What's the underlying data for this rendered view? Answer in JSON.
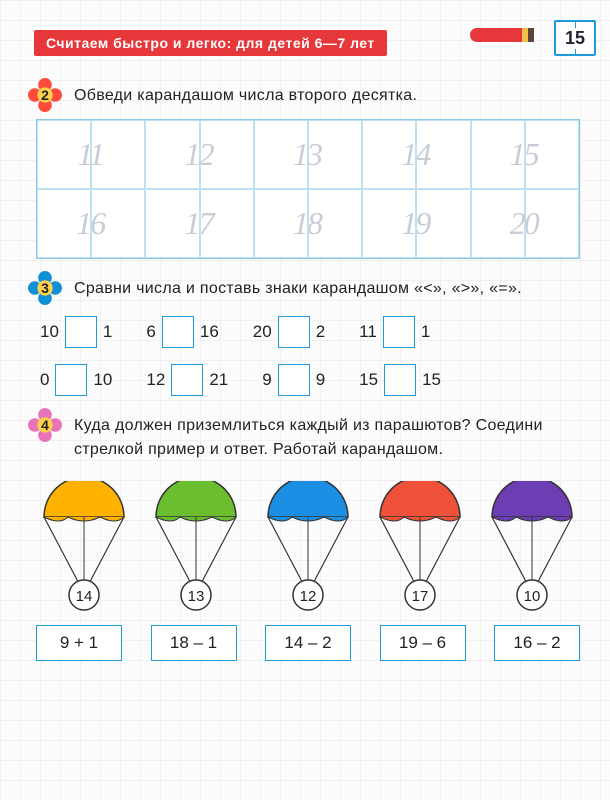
{
  "header": {
    "title": "Считаем быстро и легко: для детей 6—7 лет",
    "page": "15"
  },
  "task2": {
    "num": "2",
    "text": "Обведи карандашом числа второго десятка.",
    "row1": [
      "11",
      "12",
      "13",
      "14",
      "15"
    ],
    "row2": [
      "16",
      "17",
      "18",
      "19",
      "20"
    ],
    "flower_color": "#ff4a3c"
  },
  "task3": {
    "num": "3",
    "text": "Сравни числа и поставь знаки карандашом «<», «>», «=».",
    "rows": [
      [
        {
          "a": "10",
          "b": "1"
        },
        {
          "a": "6",
          "b": "16"
        },
        {
          "a": "20",
          "b": "2"
        },
        {
          "a": "11",
          "b": "1"
        }
      ],
      [
        {
          "a": "0",
          "b": "10"
        },
        {
          "a": "12",
          "b": "21"
        },
        {
          "a": "9",
          "b": "9"
        },
        {
          "a": "15",
          "b": "15"
        }
      ]
    ],
    "flower_color": "#1090d6"
  },
  "task4": {
    "num": "4",
    "text": "Куда должен приземлиться каждый из парашютов? Соедини стрелкой пример и ответ. Работай карандашом.",
    "parachutes": [
      {
        "color": "#ffb300",
        "answer": "14"
      },
      {
        "color": "#6bbf2f",
        "answer": "13"
      },
      {
        "color": "#1a8fe3",
        "answer": "12"
      },
      {
        "color": "#ef5238",
        "answer": "17"
      },
      {
        "color": "#6d3db3",
        "answer": "10"
      }
    ],
    "expressions": [
      "9 + 1",
      "18 – 1",
      "14 – 2",
      "19 – 6",
      "16 – 2"
    ],
    "flower_color": "#e873b8"
  }
}
